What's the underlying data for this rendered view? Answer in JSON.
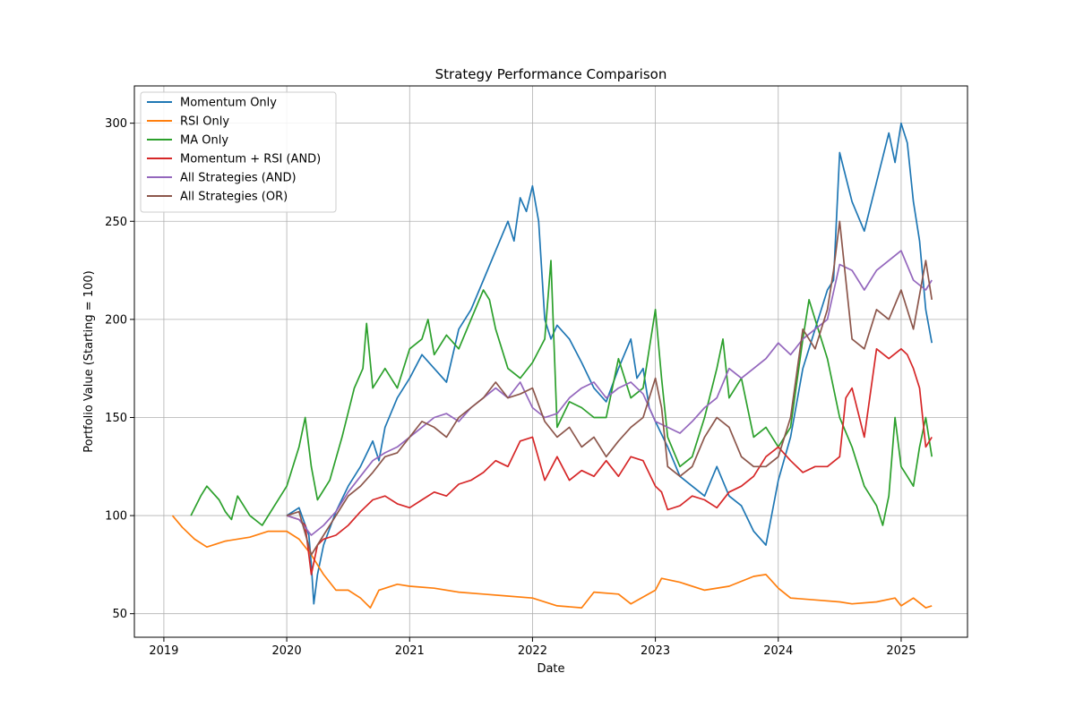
{
  "chart_data": {
    "type": "line",
    "title": "Strategy Performance Comparison",
    "xlabel": "Date",
    "ylabel": "Portfolio Value (Starting = 100)",
    "xlim": [
      2018.76,
      2025.54
    ],
    "ylim": [
      38,
      319
    ],
    "xticks": [
      2019,
      2020,
      2021,
      2022,
      2023,
      2024,
      2025
    ],
    "xtick_labels": [
      "2019",
      "2020",
      "2021",
      "2022",
      "2023",
      "2024",
      "2025"
    ],
    "yticks": [
      50,
      100,
      150,
      200,
      250,
      300
    ],
    "ytick_labels": [
      "50",
      "100",
      "150",
      "200",
      "250",
      "300"
    ],
    "grid": true,
    "legend_position": "top-left",
    "series": [
      {
        "name": "Momentum Only",
        "color": "#1f77b4",
        "x": [
          2020.0,
          2020.1,
          2020.18,
          2020.2,
          2020.22,
          2020.25,
          2020.3,
          2020.4,
          2020.5,
          2020.6,
          2020.7,
          2020.75,
          2020.8,
          2020.9,
          2021.0,
          2021.1,
          2021.2,
          2021.3,
          2021.4,
          2021.5,
          2021.6,
          2021.7,
          2021.8,
          2021.85,
          2021.9,
          2021.95,
          2022.0,
          2022.05,
          2022.1,
          2022.15,
          2022.2,
          2022.3,
          2022.4,
          2022.5,
          2022.6,
          2022.7,
          2022.8,
          2022.85,
          2022.9,
          2022.95,
          2023.0,
          2023.1,
          2023.2,
          2023.3,
          2023.4,
          2023.5,
          2023.6,
          2023.7,
          2023.8,
          2023.9,
          2024.0,
          2024.1,
          2024.2,
          2024.3,
          2024.4,
          2024.45,
          2024.5,
          2024.6,
          2024.7,
          2024.8,
          2024.9,
          2024.95,
          2025.0,
          2025.05,
          2025.1,
          2025.15,
          2025.2,
          2025.25
        ],
        "y": [
          100,
          104,
          90,
          75,
          55,
          70,
          85,
          102,
          115,
          125,
          138,
          128,
          145,
          160,
          170,
          182,
          175,
          168,
          195,
          205,
          220,
          235,
          250,
          240,
          262,
          255,
          268,
          250,
          200,
          190,
          197,
          190,
          178,
          165,
          158,
          175,
          190,
          170,
          175,
          155,
          148,
          135,
          120,
          115,
          110,
          125,
          110,
          105,
          92,
          85,
          118,
          140,
          175,
          195,
          215,
          220,
          285,
          260,
          245,
          270,
          295,
          280,
          300,
          290,
          260,
          240,
          205,
          188
        ]
      },
      {
        "name": "RSI Only",
        "color": "#ff7f0e",
        "x": [
          2019.07,
          2019.15,
          2019.25,
          2019.35,
          2019.5,
          2019.7,
          2019.85,
          2020.0,
          2020.1,
          2020.2,
          2020.3,
          2020.4,
          2020.5,
          2020.6,
          2020.68,
          2020.75,
          2020.9,
          2021.0,
          2021.2,
          2021.4,
          2021.6,
          2021.8,
          2022.0,
          2022.2,
          2022.4,
          2022.5,
          2022.7,
          2022.8,
          2023.0,
          2023.05,
          2023.2,
          2023.4,
          2023.6,
          2023.8,
          2023.9,
          2024.0,
          2024.1,
          2024.3,
          2024.5,
          2024.6,
          2024.8,
          2024.95,
          2025.0,
          2025.1,
          2025.2,
          2025.25
        ],
        "y": [
          100,
          94,
          88,
          84,
          87,
          89,
          92,
          92,
          88,
          80,
          70,
          62,
          62,
          58,
          53,
          62,
          65,
          64,
          63,
          61,
          60,
          59,
          58,
          54,
          53,
          61,
          60,
          55,
          62,
          68,
          66,
          62,
          64,
          69,
          70,
          63,
          58,
          57,
          56,
          55,
          56,
          58,
          54,
          58,
          53,
          54
        ]
      },
      {
        "name": "MA Only",
        "color": "#2ca02c",
        "x": [
          2019.22,
          2019.3,
          2019.35,
          2019.45,
          2019.5,
          2019.55,
          2019.6,
          2019.7,
          2019.8,
          2019.9,
          2020.0,
          2020.1,
          2020.15,
          2020.2,
          2020.25,
          2020.35,
          2020.45,
          2020.55,
          2020.62,
          2020.65,
          2020.7,
          2020.8,
          2020.9,
          2021.0,
          2021.1,
          2021.15,
          2021.2,
          2021.3,
          2021.4,
          2021.5,
          2021.6,
          2021.65,
          2021.7,
          2021.8,
          2021.9,
          2022.0,
          2022.1,
          2022.15,
          2022.2,
          2022.3,
          2022.4,
          2022.5,
          2022.6,
          2022.7,
          2022.8,
          2022.9,
          2023.0,
          2023.05,
          2023.1,
          2023.2,
          2023.3,
          2023.4,
          2023.5,
          2023.55,
          2023.6,
          2023.7,
          2023.8,
          2023.9,
          2024.0,
          2024.1,
          2024.2,
          2024.25,
          2024.3,
          2024.4,
          2024.5,
          2024.6,
          2024.7,
          2024.8,
          2024.85,
          2024.9,
          2024.95,
          2025.0,
          2025.05,
          2025.1,
          2025.15,
          2025.2,
          2025.25
        ],
        "y": [
          100,
          110,
          115,
          108,
          102,
          98,
          110,
          100,
          95,
          105,
          115,
          135,
          150,
          125,
          108,
          118,
          140,
          165,
          175,
          198,
          165,
          175,
          165,
          185,
          190,
          200,
          182,
          192,
          185,
          200,
          215,
          210,
          195,
          175,
          170,
          178,
          190,
          230,
          145,
          158,
          155,
          150,
          150,
          180,
          160,
          165,
          205,
          170,
          140,
          125,
          130,
          150,
          175,
          190,
          160,
          170,
          140,
          145,
          135,
          145,
          190,
          210,
          200,
          180,
          150,
          135,
          115,
          105,
          95,
          110,
          150,
          125,
          120,
          115,
          135,
          150,
          130
        ]
      },
      {
        "name": "Momentum + RSI (AND)",
        "color": "#d62728",
        "x": [
          2020.0,
          2020.1,
          2020.15,
          2020.2,
          2020.25,
          2020.3,
          2020.4,
          2020.5,
          2020.6,
          2020.7,
          2020.8,
          2020.9,
          2021.0,
          2021.1,
          2021.2,
          2021.3,
          2021.4,
          2021.5,
          2021.6,
          2021.7,
          2021.8,
          2021.9,
          2022.0,
          2022.1,
          2022.2,
          2022.3,
          2022.4,
          2022.5,
          2022.6,
          2022.7,
          2022.8,
          2022.9,
          2023.0,
          2023.05,
          2023.1,
          2023.2,
          2023.3,
          2023.4,
          2023.5,
          2023.6,
          2023.7,
          2023.8,
          2023.9,
          2024.0,
          2024.1,
          2024.2,
          2024.3,
          2024.4,
          2024.5,
          2024.55,
          2024.6,
          2024.7,
          2024.8,
          2024.9,
          2025.0,
          2025.05,
          2025.1,
          2025.15,
          2025.2,
          2025.25
        ],
        "y": [
          100,
          98,
          95,
          70,
          85,
          88,
          90,
          95,
          102,
          108,
          110,
          106,
          104,
          108,
          112,
          110,
          116,
          118,
          122,
          128,
          125,
          138,
          140,
          118,
          130,
          118,
          123,
          120,
          128,
          120,
          130,
          128,
          115,
          112,
          103,
          105,
          110,
          108,
          104,
          112,
          115,
          120,
          130,
          135,
          128,
          122,
          125,
          125,
          130,
          160,
          165,
          140,
          185,
          180,
          185,
          182,
          175,
          165,
          135,
          140
        ]
      },
      {
        "name": "All Strategies (AND)",
        "color": "#9467bd",
        "x": [
          2020.0,
          2020.1,
          2020.2,
          2020.3,
          2020.4,
          2020.5,
          2020.6,
          2020.7,
          2020.8,
          2020.9,
          2021.0,
          2021.1,
          2021.2,
          2021.3,
          2021.4,
          2021.5,
          2021.6,
          2021.7,
          2021.8,
          2021.9,
          2022.0,
          2022.1,
          2022.2,
          2022.3,
          2022.4,
          2022.5,
          2022.6,
          2022.7,
          2022.8,
          2022.9,
          2023.0,
          2023.1,
          2023.2,
          2023.3,
          2023.4,
          2023.5,
          2023.6,
          2023.7,
          2023.8,
          2023.9,
          2024.0,
          2024.1,
          2024.2,
          2024.3,
          2024.4,
          2024.5,
          2024.6,
          2024.7,
          2024.8,
          2024.9,
          2025.0,
          2025.1,
          2025.2,
          2025.25
        ],
        "y": [
          100,
          98,
          90,
          95,
          102,
          112,
          120,
          128,
          132,
          135,
          140,
          145,
          150,
          152,
          148,
          155,
          160,
          165,
          160,
          168,
          155,
          150,
          152,
          160,
          165,
          168,
          160,
          165,
          168,
          162,
          148,
          145,
          142,
          148,
          155,
          160,
          175,
          170,
          175,
          180,
          188,
          182,
          190,
          195,
          200,
          228,
          225,
          215,
          225,
          230,
          235,
          220,
          215,
          220
        ]
      },
      {
        "name": "All Strategies (OR)",
        "color": "#8c564b",
        "x": [
          2020.0,
          2020.1,
          2020.2,
          2020.3,
          2020.4,
          2020.5,
          2020.6,
          2020.7,
          2020.8,
          2020.9,
          2021.0,
          2021.1,
          2021.2,
          2021.3,
          2021.4,
          2021.5,
          2021.6,
          2021.7,
          2021.8,
          2021.9,
          2022.0,
          2022.1,
          2022.2,
          2022.3,
          2022.4,
          2022.5,
          2022.6,
          2022.7,
          2022.8,
          2022.9,
          2023.0,
          2023.05,
          2023.1,
          2023.2,
          2023.3,
          2023.4,
          2023.5,
          2023.6,
          2023.7,
          2023.8,
          2023.9,
          2024.0,
          2024.1,
          2024.2,
          2024.3,
          2024.4,
          2024.45,
          2024.5,
          2024.6,
          2024.7,
          2024.8,
          2024.9,
          2025.0,
          2025.1,
          2025.2,
          2025.25
        ],
        "y": [
          100,
          102,
          80,
          90,
          100,
          110,
          115,
          122,
          130,
          132,
          140,
          148,
          145,
          140,
          150,
          155,
          160,
          168,
          160,
          162,
          165,
          148,
          140,
          145,
          135,
          140,
          130,
          138,
          145,
          150,
          170,
          155,
          125,
          120,
          125,
          140,
          150,
          145,
          130,
          125,
          125,
          130,
          150,
          195,
          185,
          205,
          225,
          250,
          190,
          185,
          205,
          200,
          215,
          195,
          230,
          210
        ]
      }
    ]
  }
}
